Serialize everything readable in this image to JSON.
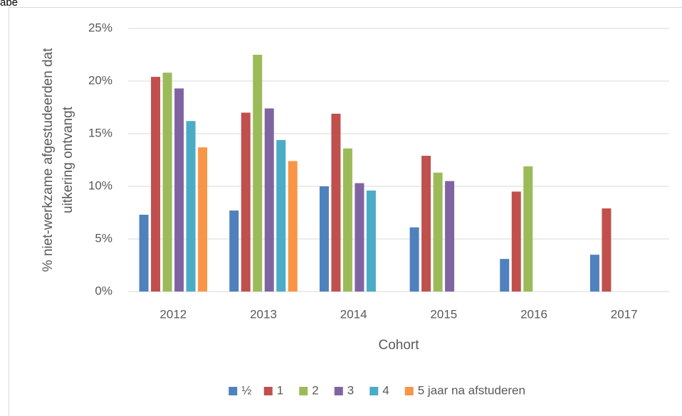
{
  "page_label": "abe",
  "chart_data": {
    "type": "bar",
    "y_label": [
      "% niet-werkzame afgestudeerden dat",
      "uitkering ontvangt"
    ],
    "x_label": "Cohort",
    "categories": [
      "2012",
      "2013",
      "2014",
      "2015",
      "2016",
      "2017"
    ],
    "series": [
      {
        "name": "½",
        "color": "#4f81bd",
        "values": [
          7.3,
          7.7,
          10.0,
          6.1,
          3.1,
          3.5
        ]
      },
      {
        "name": "1",
        "color": "#c0504d",
        "values": [
          20.4,
          17.0,
          16.9,
          12.9,
          9.5,
          7.9
        ]
      },
      {
        "name": "2",
        "color": "#9bbb59",
        "values": [
          20.8,
          22.5,
          13.6,
          11.3,
          11.9,
          null
        ]
      },
      {
        "name": "3",
        "color": "#8064a2",
        "values": [
          19.3,
          17.4,
          10.3,
          10.5,
          null,
          null
        ]
      },
      {
        "name": "4",
        "color": "#4bacc6",
        "values": [
          16.2,
          14.4,
          9.6,
          null,
          null,
          null
        ]
      },
      {
        "name": "5 jaar na afstuderen",
        "color": "#f79646",
        "values": [
          13.7,
          12.4,
          null,
          null,
          null,
          null
        ]
      }
    ],
    "ylim": [
      0,
      25
    ],
    "yticks": [
      {
        "value": 0,
        "label": "0%"
      },
      {
        "value": 5,
        "label": "5%"
      },
      {
        "value": 10,
        "label": "10%"
      },
      {
        "value": 15,
        "label": "15%"
      },
      {
        "value": 20,
        "label": "20%"
      },
      {
        "value": 25,
        "label": "25%"
      }
    ],
    "grid": true,
    "legend": "bottom"
  }
}
